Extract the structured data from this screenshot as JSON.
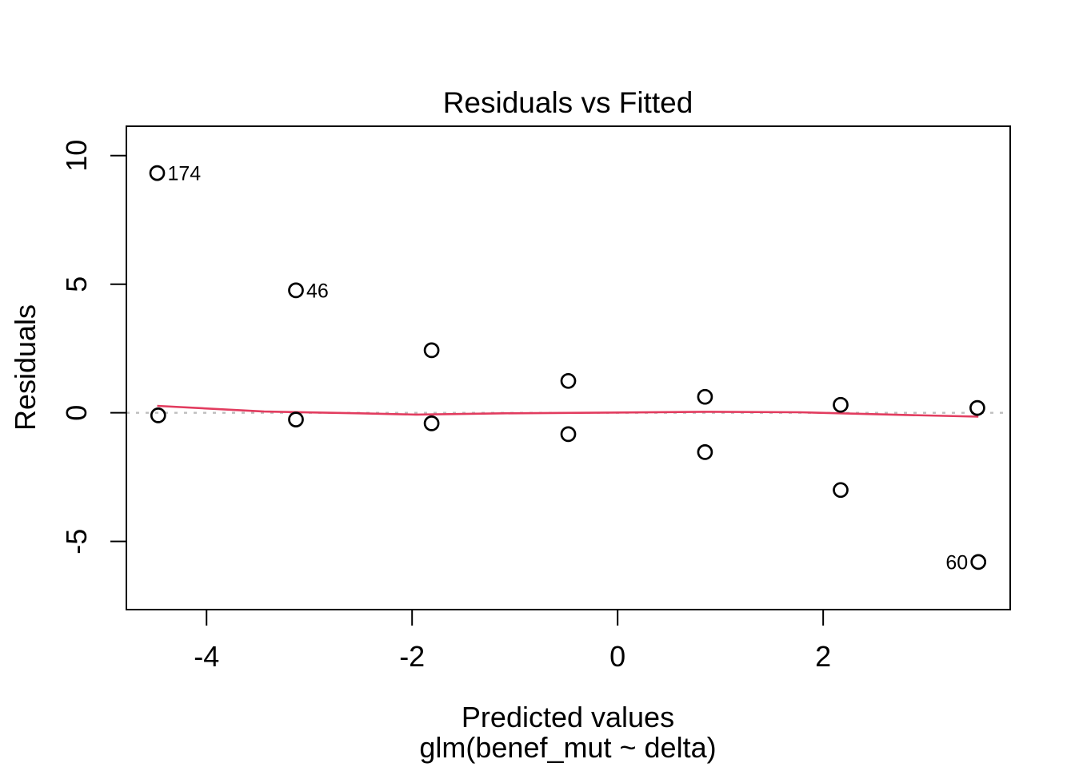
{
  "chart_data": {
    "type": "scatter",
    "title": "Residuals vs Fitted",
    "xlabel": "Predicted values",
    "xlabel_sub": "glm(benef_mut ~ delta)",
    "ylabel": "Residuals",
    "xlim": [
      -4.78,
      3.82
    ],
    "ylim": [
      -7.65,
      11.14
    ],
    "x_ticks": [
      -4,
      -2,
      0,
      2
    ],
    "y_ticks": [
      10,
      5,
      0,
      -5
    ],
    "grid": false,
    "legend": null,
    "zero_line_y": 0,
    "points": [
      {
        "x": -4.48,
        "y": 9.32,
        "label": "174",
        "label_side": "right"
      },
      {
        "x": -4.47,
        "y": -0.1
      },
      {
        "x": -3.13,
        "y": 4.76,
        "label": "46",
        "label_side": "right"
      },
      {
        "x": -3.13,
        "y": -0.26
      },
      {
        "x": -1.81,
        "y": 2.43
      },
      {
        "x": -1.81,
        "y": -0.41
      },
      {
        "x": -0.48,
        "y": 1.24
      },
      {
        "x": -0.48,
        "y": -0.83
      },
      {
        "x": 0.85,
        "y": 0.62
      },
      {
        "x": 0.85,
        "y": -1.53
      },
      {
        "x": 2.17,
        "y": 0.31
      },
      {
        "x": 2.17,
        "y": -3.0
      },
      {
        "x": 3.5,
        "y": 0.19
      },
      {
        "x": 3.51,
        "y": -5.8,
        "label": "60",
        "label_side": "left"
      }
    ],
    "smooth_line": [
      [
        -4.48,
        0.27
      ],
      [
        -3.44,
        0.05
      ],
      [
        -2.51,
        -0.02
      ],
      [
        -1.96,
        -0.07
      ],
      [
        -1.11,
        -0.02
      ],
      [
        -0.09,
        0.01
      ],
      [
        0.84,
        0.04
      ],
      [
        1.77,
        0.02
      ],
      [
        2.55,
        -0.06
      ],
      [
        3.51,
        -0.15
      ]
    ],
    "colors": {
      "point_stroke": "#000000",
      "smooth_line": "#e23c5f",
      "zero_line": "#bebebe",
      "axis": "#000000"
    }
  }
}
